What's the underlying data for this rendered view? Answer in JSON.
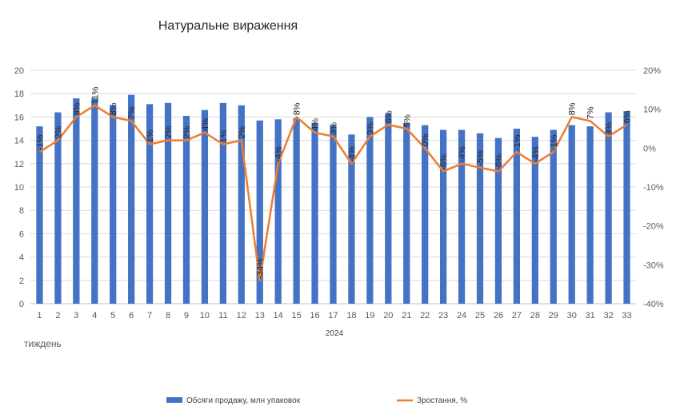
{
  "chart_data": {
    "type": "bar+line",
    "title": "Натуральне вираження",
    "xlabel": "тиждень",
    "x_group_label": "2024",
    "categories": [
      "1",
      "2",
      "3",
      "4",
      "5",
      "6",
      "7",
      "8",
      "9",
      "10",
      "11",
      "12",
      "13",
      "14",
      "15",
      "16",
      "17",
      "18",
      "19",
      "20",
      "21",
      "22",
      "23",
      "24",
      "25",
      "26",
      "27",
      "28",
      "29",
      "30",
      "31",
      "32",
      "33"
    ],
    "y_left": {
      "min": 0,
      "max": 20,
      "step": 2,
      "ticks": [
        "0",
        "2",
        "4",
        "6",
        "8",
        "10",
        "12",
        "14",
        "16",
        "18",
        "20"
      ]
    },
    "y_right": {
      "min": -40,
      "max": 20,
      "step": 10,
      "ticks": [
        "-40%",
        "-30%",
        "-20%",
        "-10%",
        "0%",
        "10%",
        "20%"
      ]
    },
    "gridlines": true,
    "legend_position": "bottom",
    "series": [
      {
        "name": "Обсяги продажу, млн упаковок",
        "kind": "bar",
        "axis": "left",
        "color": "#4472C4",
        "values": [
          15.2,
          16.4,
          17.6,
          17.6,
          17.0,
          17.9,
          17.1,
          17.2,
          16.1,
          16.6,
          17.2,
          17.0,
          15.7,
          15.8,
          15.9,
          15.5,
          15.3,
          14.5,
          16.0,
          16.3,
          15.5,
          15.3,
          14.9,
          14.9,
          14.6,
          14.2,
          15.0,
          14.3,
          14.9,
          15.3,
          15.2,
          16.4,
          16.5
        ]
      },
      {
        "name": "Зростання, %",
        "kind": "line",
        "axis": "right",
        "color": "#ED7D31",
        "values": [
          -1,
          2,
          8,
          11,
          8,
          7,
          1,
          2,
          2,
          4,
          1,
          2,
          -34,
          -4,
          8,
          4,
          3,
          -4,
          3,
          6,
          5,
          0,
          -6,
          -4,
          -5,
          -6,
          -1,
          -4,
          -1,
          8,
          7,
          3,
          6
        ],
        "labels": [
          "-1%",
          "2%",
          "8%",
          "11%",
          "8%",
          "7%",
          "1%",
          "2%",
          "2%",
          "4%",
          "1%",
          "2%",
          "-34%",
          "-4%",
          "8%",
          "4%",
          "3%",
          "-4%",
          "3%",
          "6%",
          "5%",
          "0%",
          "-6%",
          "-4%",
          "-5%",
          "-6%",
          "-1%",
          "-4%",
          "-1%",
          "8%",
          "7%",
          "3%",
          "6%"
        ]
      }
    ]
  }
}
